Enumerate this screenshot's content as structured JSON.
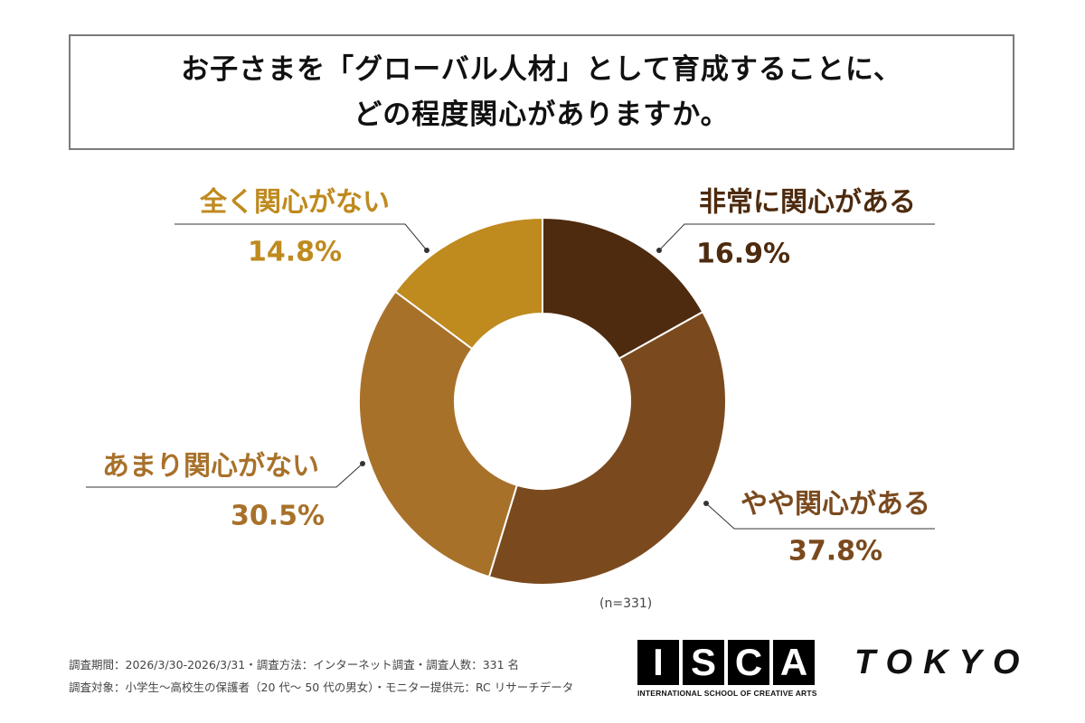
{
  "title": {
    "line1": "お子さまを「グローバル人材」として育成することに、",
    "line2": "どの程度関心がありますか。"
  },
  "chart_data": {
    "type": "pie",
    "variant": "donut",
    "start": "top",
    "direction": "clockwise",
    "slices": [
      {
        "label": "非常に関心がある",
        "value": 16.9,
        "display": "16.9%",
        "color": "#4e2b0e"
      },
      {
        "label": "やや関心がある",
        "value": 37.8,
        "display": "37.8%",
        "color": "#7a4a1e"
      },
      {
        "label": "あまり関心がない",
        "value": 30.5,
        "display": "30.5%",
        "color": "#a8712a"
      },
      {
        "label": "全く関心がない",
        "value": 14.8,
        "display": "14.8%",
        "color": "#bf8a1e"
      }
    ],
    "sample": "(n=331)"
  },
  "footer": {
    "line1": "調査期間：2026/3/30-2026/3/31・調査方法：インターネット調査・調査人数：331 名",
    "line2": "調査対象：小学生〜高校生の保護者（20 代〜 50 代の男女）・モニター提供元：RC リサーチデータ"
  },
  "logo": {
    "letters": [
      "I",
      "S",
      "C",
      "A"
    ],
    "city": "TOKYO",
    "subtitle": "INTERNATIONAL SCHOOL OF CREATIVE ARTS"
  }
}
